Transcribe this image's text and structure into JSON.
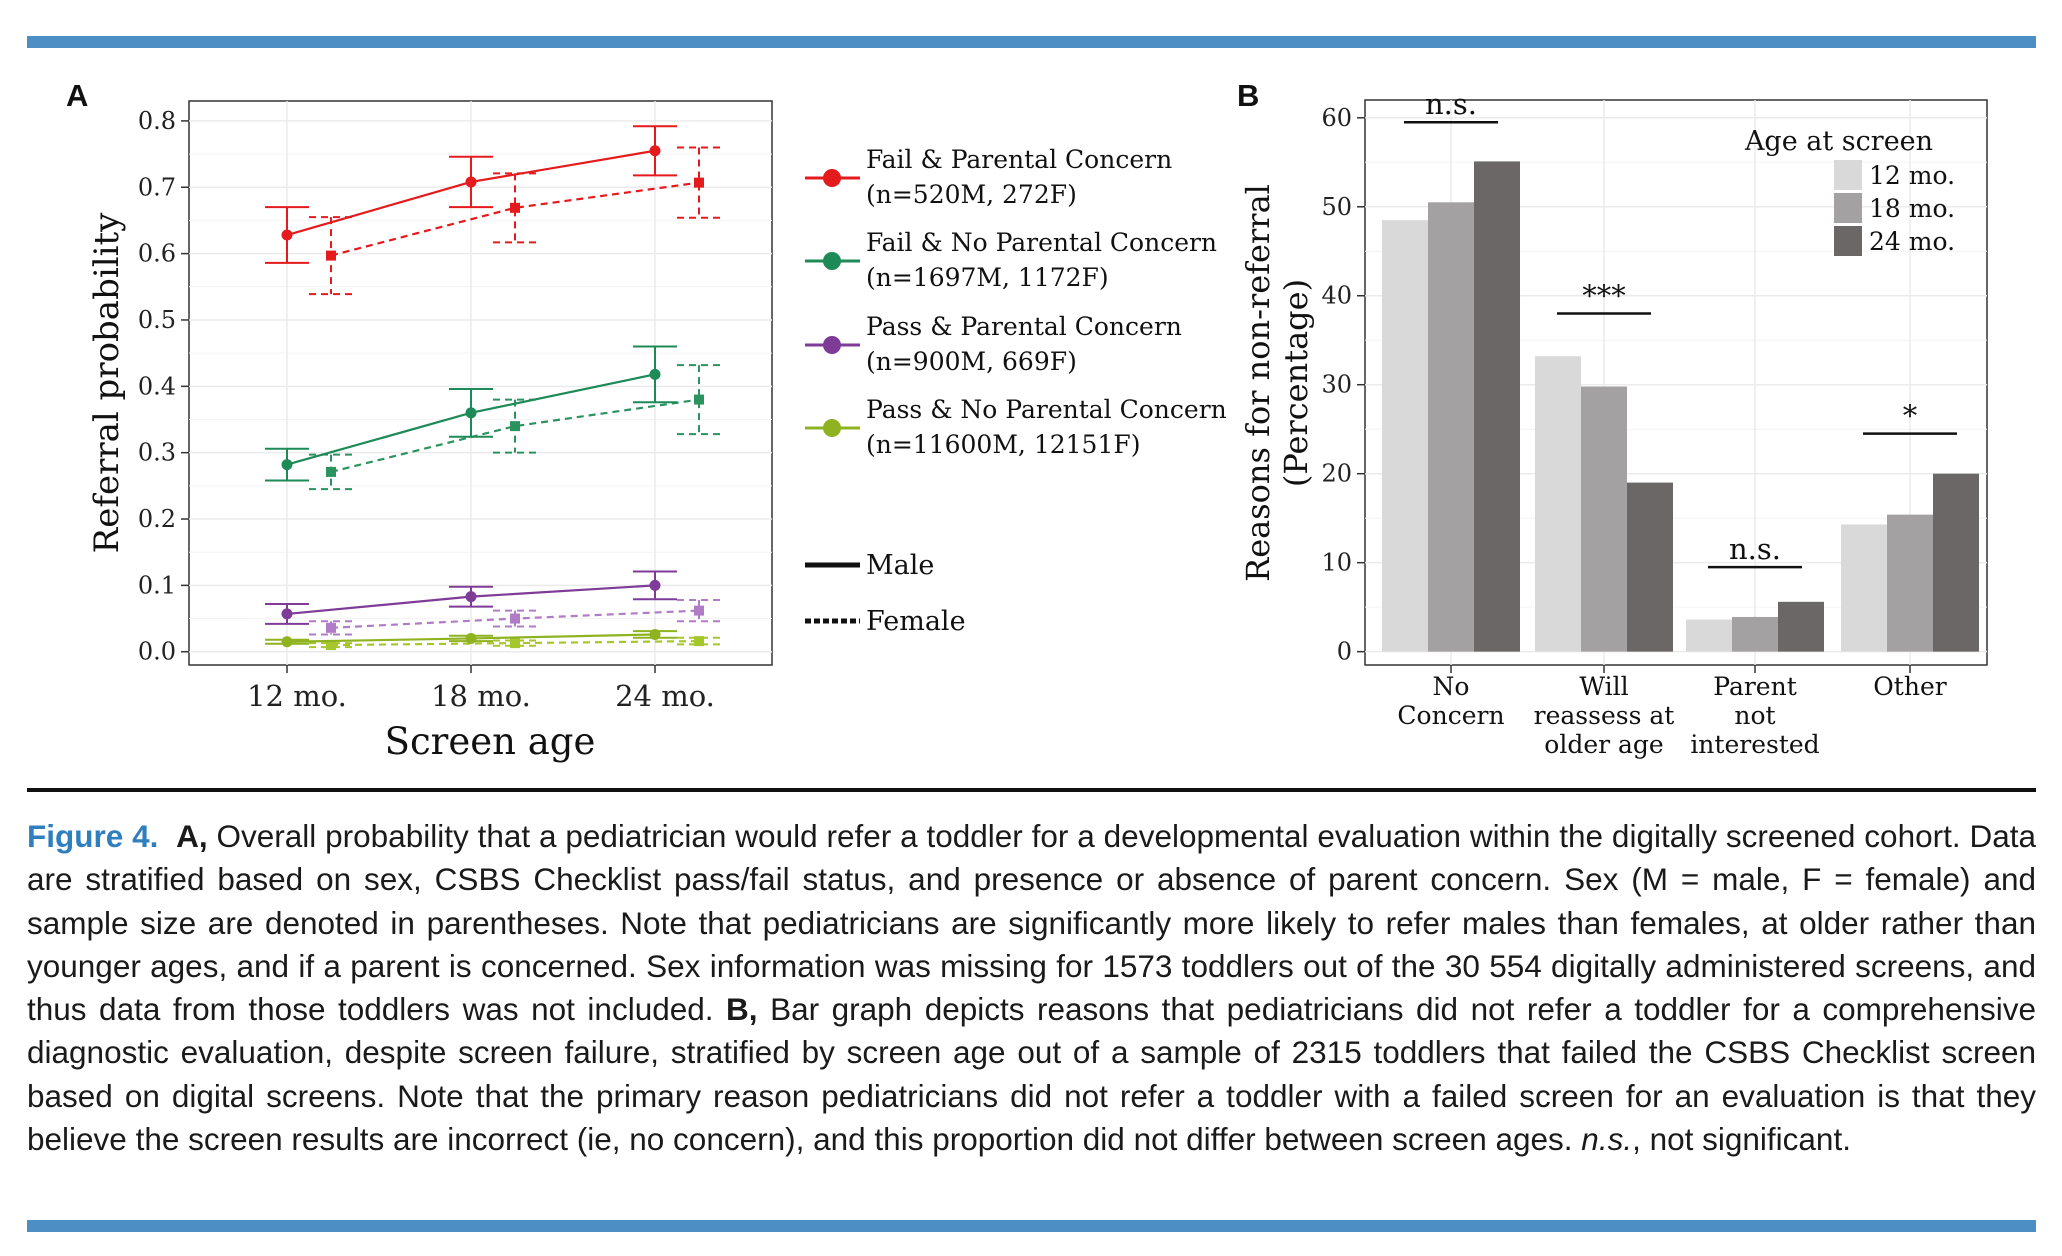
{
  "figure": {
    "label": "Figure 4.",
    "colors": {
      "rule_blue": "#4d8fc4",
      "caption_label": "#2f7fbf"
    },
    "caption": {
      "a_label": "A,",
      "a_text": " Overall probability that a pediatrician would refer a toddler for a developmental evaluation within the digitally screened cohort. Data are stratified based on sex, CSBS Checklist pass/fail status, and presence or absence of parent concern. Sex (M = male, F = female) and sample size are denoted in parentheses. Note that pediatricians are significantly more likely to refer males than females, at older rather than younger ages, and if a parent is concerned. Sex information was missing for 1573 toddlers out of the 30 554 digitally administered screens, and thus data from those toddlers was not included. ",
      "b_label": "B,",
      "b_text": " Bar graph depicts reasons that pediatricians did not refer a toddler for a comprehensive diagnostic evaluation, despite screen failure, stratified by screen age out of a sample of 2315 toddlers that failed the CSBS Checklist screen based on digital screens. Note that the primary reason pediatricians did not refer a toddler with a failed screen for an evaluation is that they believe the screen results are incorrect (ie, no concern), and this proportion did not differ between screen ages. ",
      "ns_italic": "n.s.",
      "ns_text": ", not significant."
    }
  },
  "chart_data": [
    {
      "panel": "A",
      "type": "line",
      "xlabel": "Screen age",
      "ylabel": "Referral probability",
      "categories": [
        "12 mo.",
        "18 mo.",
        "24 mo."
      ],
      "ylim": [
        -0.02,
        0.83
      ],
      "yticks": [
        "0.0",
        "0.1",
        "0.2",
        "0.3",
        "0.4",
        "0.5",
        "0.6",
        "0.7",
        "0.8"
      ],
      "grid": true,
      "legend_position": "right",
      "series": [
        {
          "name": "Fail & Parental Concern",
          "n": "(n=520M, 272F)",
          "color": "#e41a1c",
          "female_color": "#e41a1c",
          "male": [
            0.628,
            0.708,
            0.755
          ],
          "male_err": [
            0.042,
            0.038,
            0.037
          ],
          "female": [
            0.597,
            0.669,
            0.707
          ],
          "female_err": [
            0.058,
            0.052,
            0.053
          ]
        },
        {
          "name": "Fail & No Parental Concern",
          "n": "(n=1697M, 1172F)",
          "color": "#1d8a57",
          "female_color": "#2a9360",
          "male": [
            0.282,
            0.36,
            0.418
          ],
          "male_err": [
            0.024,
            0.036,
            0.042
          ],
          "female": [
            0.271,
            0.34,
            0.38
          ],
          "female_err": [
            0.026,
            0.04,
            0.052
          ]
        },
        {
          "name": "Pass & Parental Concern",
          "n": "(n=900M, 669F)",
          "color": "#7e3b98",
          "female_color": "#b07cc5",
          "male": [
            0.057,
            0.083,
            0.1
          ],
          "male_err": [
            0.015,
            0.015,
            0.021
          ],
          "female": [
            0.036,
            0.05,
            0.062
          ],
          "female_err": [
            0.01,
            0.012,
            0.016
          ]
        },
        {
          "name": "Pass & No Parental Concern",
          "n": "(n=11600M, 12151F)",
          "color": "#8fb320",
          "female_color": "#a5c72b",
          "male": [
            0.015,
            0.02,
            0.026
          ],
          "male_err": [
            0.003,
            0.004,
            0.005
          ],
          "female": [
            0.01,
            0.013,
            0.016
          ],
          "female_err": [
            0.003,
            0.004,
            0.005
          ]
        }
      ],
      "linetype_legend": {
        "male": "Male",
        "female": "Female"
      }
    },
    {
      "panel": "B",
      "type": "bar",
      "ylabel_line1": "Reasons for non-referral",
      "ylabel_line2": "(Percentage)",
      "categories": [
        [
          "No",
          "Concern"
        ],
        [
          "Will",
          "reassess at",
          "older age"
        ],
        [
          "Parent",
          "not",
          "interested"
        ],
        [
          "Other"
        ]
      ],
      "ylim": [
        -1.5,
        62
      ],
      "yticks": [
        "0",
        "10",
        "20",
        "30",
        "40",
        "50",
        "60"
      ],
      "legend_title": "Age at screen",
      "legend_position": "top-right",
      "series": [
        {
          "name": "12 mo.",
          "color": "#d9d9d9",
          "values": [
            48.5,
            33.2,
            3.6,
            14.3
          ]
        },
        {
          "name": "18 mo.",
          "color": "#a3a1a1",
          "values": [
            50.5,
            29.8,
            3.9,
            15.4
          ]
        },
        {
          "name": "24 mo.",
          "color": "#6b6767",
          "values": [
            55.1,
            19.0,
            5.6,
            20.0
          ]
        }
      ],
      "significance": [
        "n.s.",
        "***",
        "n.s.",
        "*"
      ],
      "significance_level": [
        59.5,
        38.0,
        9.5,
        24.5
      ]
    }
  ]
}
